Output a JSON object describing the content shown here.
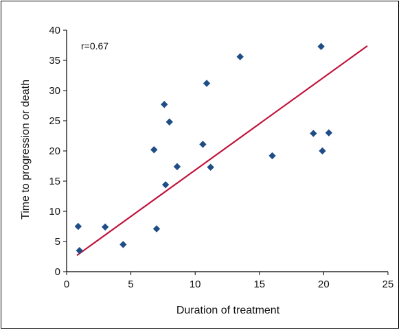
{
  "chart_data": {
    "type": "scatter",
    "xlabel": "Duration of treatment",
    "ylabel": "Time to progression or death",
    "xlim": [
      0,
      25
    ],
    "ylim": [
      0,
      40
    ],
    "xticks": [
      0,
      5,
      10,
      15,
      20,
      25
    ],
    "yticks": [
      0,
      5,
      10,
      15,
      20,
      25,
      30,
      35,
      40
    ],
    "grid": false,
    "annotation": "r=0.67",
    "marker_color": "#1f4e86",
    "trendline_color": "#c0143c",
    "points": [
      {
        "x": 0.9,
        "y": 7.5
      },
      {
        "x": 1.0,
        "y": 3.5
      },
      {
        "x": 3.0,
        "y": 7.4
      },
      {
        "x": 4.4,
        "y": 4.5
      },
      {
        "x": 6.8,
        "y": 20.2
      },
      {
        "x": 7.0,
        "y": 7.1
      },
      {
        "x": 7.6,
        "y": 27.7
      },
      {
        "x": 7.7,
        "y": 14.4
      },
      {
        "x": 8.0,
        "y": 24.8
      },
      {
        "x": 8.6,
        "y": 17.4
      },
      {
        "x": 10.6,
        "y": 21.1
      },
      {
        "x": 10.9,
        "y": 31.2
      },
      {
        "x": 11.2,
        "y": 17.3
      },
      {
        "x": 13.5,
        "y": 35.6
      },
      {
        "x": 16.0,
        "y": 19.2
      },
      {
        "x": 19.2,
        "y": 22.9
      },
      {
        "x": 19.8,
        "y": 37.3
      },
      {
        "x": 19.9,
        "y": 20.0
      },
      {
        "x": 20.4,
        "y": 23.0
      }
    ],
    "trendline": {
      "x": [
        0.8,
        23.4
      ],
      "y": [
        2.7,
        37.4
      ]
    }
  }
}
